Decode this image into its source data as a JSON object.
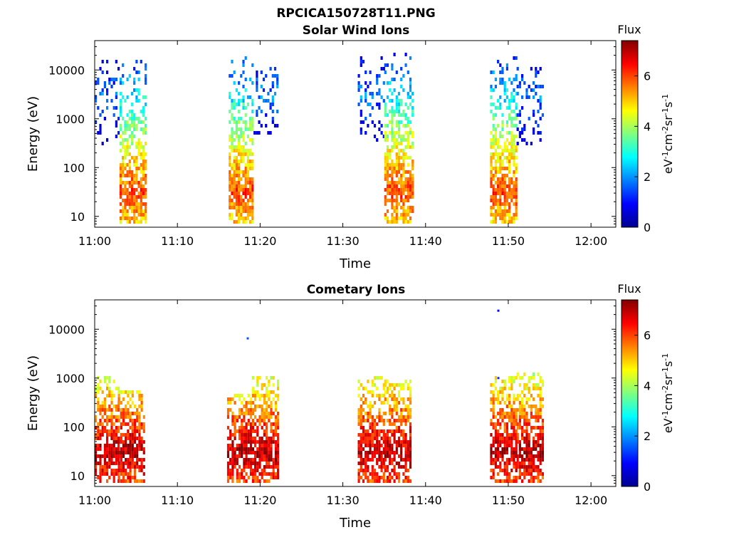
{
  "figure": {
    "title": "RPCICA150728T11.PNG"
  },
  "colorbar": {
    "colors": [
      "#00008f",
      "#0000ff",
      "#0080ff",
      "#00ffff",
      "#80ff80",
      "#ffff00",
      "#ff8000",
      "#ff0000",
      "#800000"
    ],
    "label_unit": "eV",
    "label_rest": "cm",
    "exp_m1": "-1",
    "exp_m2": "-2",
    "label_sr": "sr",
    "label_s": "s"
  },
  "chart_data": [
    {
      "type": "heatmap",
      "title": "Solar Wind Ions",
      "xlabel": "Time",
      "ylabel": "Energy (eV)",
      "colorbar_title": "Flux",
      "x_ticks": [
        "11:00",
        "11:10",
        "11:20",
        "11:30",
        "11:40",
        "11:50",
        "12:00"
      ],
      "x_range_minutes": [
        0,
        63
      ],
      "y_ticks": [
        "10",
        "100",
        "1000",
        "10000"
      ],
      "y_range": [
        6,
        40000
      ],
      "y_scale": "log",
      "colorbar_ticks": [
        "0",
        "2",
        "4",
        "6"
      ],
      "colorbar_range": [
        0,
        7.4
      ],
      "blocks": [
        {
          "start_min": 0.0,
          "end_min": 3.0,
          "emin": 300,
          "emax": 18000,
          "peak_e": 3000,
          "density": 0.28,
          "flux": 1.8
        },
        {
          "start_min": 3.0,
          "end_min": 6.2,
          "emin": 7,
          "emax": 16000,
          "peak_e": 32,
          "density": 0.85,
          "flux": 6.0
        },
        {
          "start_min": 16.2,
          "end_min": 19.2,
          "emin": 7,
          "emax": 20000,
          "peak_e": 32,
          "density": 0.85,
          "flux": 6.0
        },
        {
          "start_min": 19.2,
          "end_min": 22.2,
          "emin": 500,
          "emax": 12000,
          "peak_e": 3000,
          "density": 0.25,
          "flux": 1.9
        },
        {
          "start_min": 31.8,
          "end_min": 35.0,
          "emin": 350,
          "emax": 22000,
          "peak_e": 3000,
          "density": 0.28,
          "flux": 1.8
        },
        {
          "start_min": 35.0,
          "end_min": 38.5,
          "emin": 7,
          "emax": 26000,
          "peak_e": 32,
          "density": 0.85,
          "flux": 6.0
        },
        {
          "start_min": 47.8,
          "end_min": 51.0,
          "emin": 7,
          "emax": 20000,
          "peak_e": 32,
          "density": 0.85,
          "flux": 6.0
        },
        {
          "start_min": 51.0,
          "end_min": 54.2,
          "emin": 300,
          "emax": 12000,
          "peak_e": 3000,
          "density": 0.3,
          "flux": 1.9
        }
      ]
    },
    {
      "type": "heatmap",
      "title": "Cometary Ions",
      "xlabel": "Time",
      "ylabel": "Energy (eV)",
      "colorbar_title": "Flux",
      "x_ticks": [
        "11:00",
        "11:10",
        "11:20",
        "11:30",
        "11:40",
        "11:50",
        "12:00"
      ],
      "x_range_minutes": [
        0,
        63
      ],
      "y_ticks": [
        "10",
        "100",
        "1000",
        "10000"
      ],
      "y_range": [
        6,
        40000
      ],
      "y_scale": "log",
      "colorbar_ticks": [
        "0",
        "2",
        "4",
        "6"
      ],
      "colorbar_range": [
        0,
        7.4
      ],
      "blocks": [
        {
          "start_min": 0.0,
          "end_min": 2.8,
          "emin": 7,
          "emax": 1200,
          "peak_e": 30,
          "density": 0.8,
          "flux": 7.0
        },
        {
          "start_min": 2.8,
          "end_min": 6.0,
          "emin": 7,
          "emax": 600,
          "peak_e": 30,
          "density": 0.8,
          "flux": 7.0
        },
        {
          "start_min": 16.0,
          "end_min": 19.0,
          "emin": 7,
          "emax": 500,
          "peak_e": 30,
          "density": 0.8,
          "flux": 7.0
        },
        {
          "start_min": 19.0,
          "end_min": 22.2,
          "emin": 7,
          "emax": 1200,
          "peak_e": 30,
          "density": 0.8,
          "flux": 7.0
        },
        {
          "start_min": 31.8,
          "end_min": 35.0,
          "emin": 7,
          "emax": 1200,
          "peak_e": 30,
          "density": 0.8,
          "flux": 7.0
        },
        {
          "start_min": 35.0,
          "end_min": 38.2,
          "emin": 7,
          "emax": 1000,
          "peak_e": 30,
          "density": 0.8,
          "flux": 7.0
        },
        {
          "start_min": 47.8,
          "end_min": 51.0,
          "emin": 7,
          "emax": 1100,
          "peak_e": 30,
          "density": 0.8,
          "flux": 7.0
        },
        {
          "start_min": 51.0,
          "end_min": 54.2,
          "emin": 7,
          "emax": 1400,
          "peak_e": 30,
          "density": 0.8,
          "flux": 7.0
        }
      ],
      "points": [
        {
          "t_min": 18.5,
          "energy": 6500,
          "flux": 1.5
        },
        {
          "t_min": 48.8,
          "energy": 24000,
          "flux": 1.0
        },
        {
          "t_min": 48.8,
          "energy": 1000,
          "flux": 1.2
        }
      ]
    }
  ]
}
